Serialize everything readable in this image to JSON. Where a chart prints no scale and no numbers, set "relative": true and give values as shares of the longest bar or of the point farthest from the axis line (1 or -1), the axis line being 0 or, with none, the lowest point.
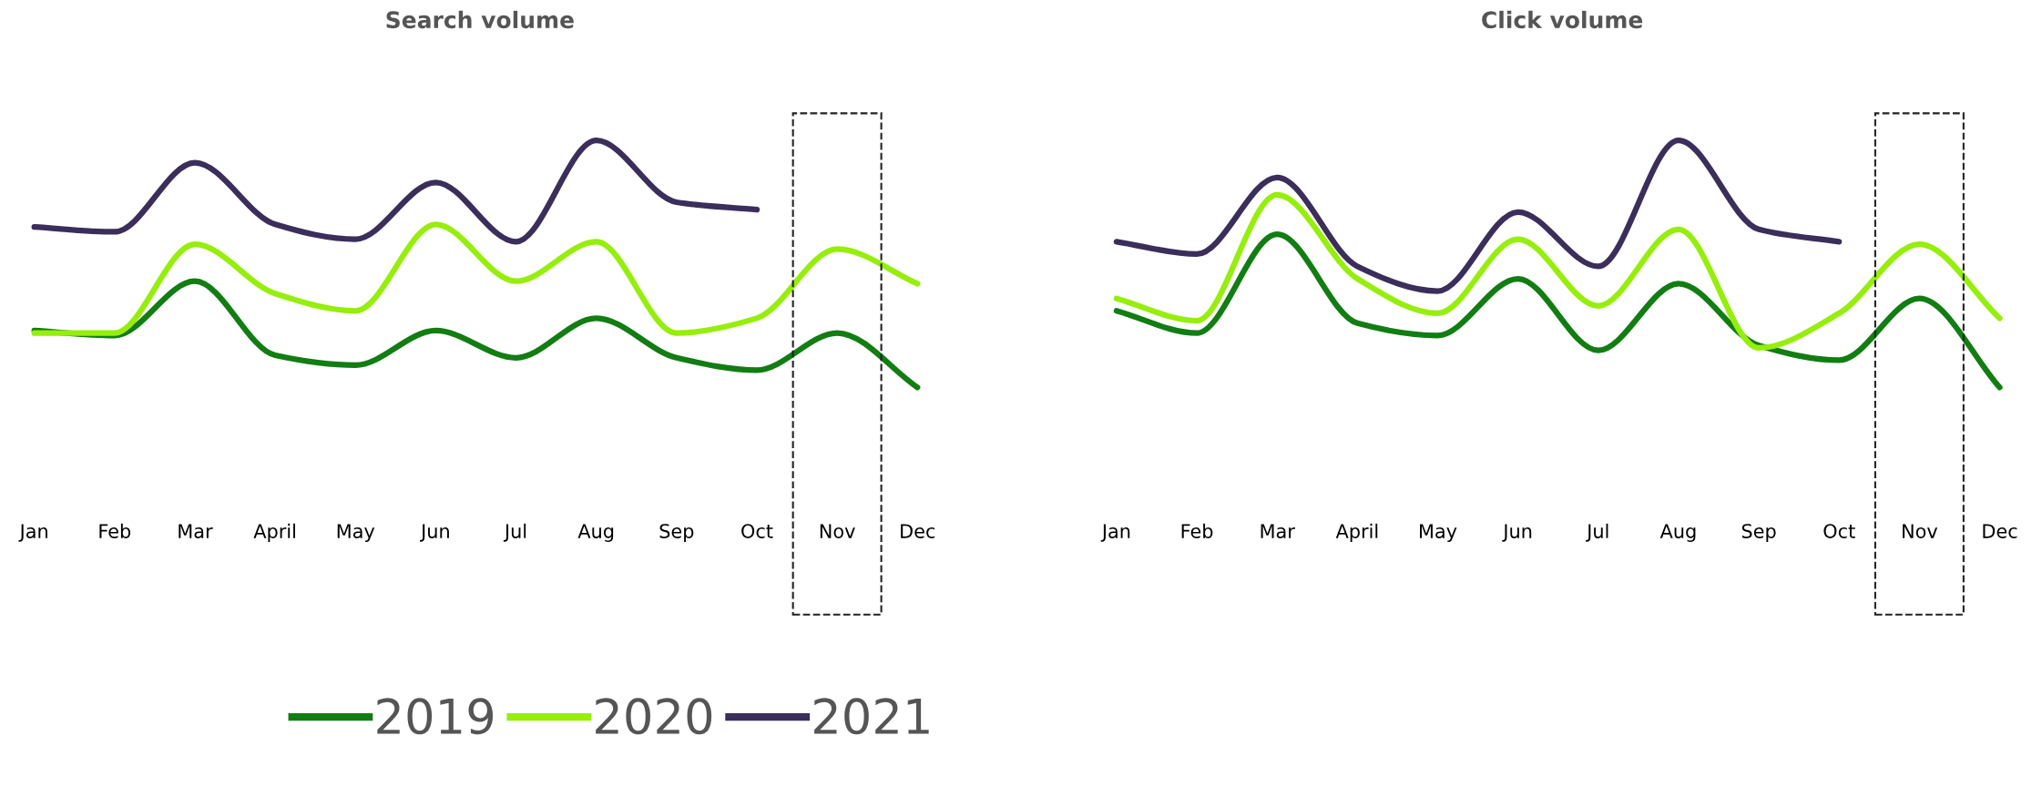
{
  "chart_data": [
    {
      "type": "line",
      "title": "Search volume",
      "relative": true,
      "categories": [
        "Jan",
        "Feb",
        "Mar",
        "April",
        "May",
        "Jun",
        "Jul",
        "Aug",
        "Sep",
        "Oct",
        "Nov",
        "Dec"
      ],
      "series": [
        {
          "name": "2019",
          "color": "#127d12",
          "values": [
            0.23,
            0.21,
            0.43,
            0.13,
            0.09,
            0.23,
            0.12,
            0.28,
            0.12,
            0.07,
            0.22,
            0
          ]
        },
        {
          "name": "2020",
          "color": "#96ee0c",
          "values": [
            0.22,
            0.22,
            0.58,
            0.38,
            0.31,
            0.66,
            0.43,
            0.59,
            0.22,
            0.28,
            0.56,
            0.42
          ]
        },
        {
          "name": "2021",
          "color": "#3b2e5a",
          "values": [
            0.65,
            0.63,
            0.91,
            0.66,
            0.6,
            0.83,
            0.59,
            1,
            0.75,
            0.72,
            null,
            null
          ]
        }
      ],
      "grid": false,
      "legend": "bottom",
      "line_style": "solid",
      "marker": "none"
    },
    {
      "type": "line",
      "title": "Click volume",
      "relative": true,
      "categories": [
        "Jan",
        "Feb",
        "Mar",
        "April",
        "May",
        "Jun",
        "Jul",
        "Aug",
        "Sep",
        "Oct",
        "Nov",
        "Dec"
      ],
      "series": [
        {
          "name": "2019",
          "color": "#127d12",
          "values": [
            0.31,
            0.22,
            0.62,
            0.26,
            0.21,
            0.44,
            0.15,
            0.42,
            0.17,
            0.11,
            0.36,
            0
          ]
        },
        {
          "name": "2020",
          "color": "#96ee0c",
          "values": [
            0.36,
            0.27,
            0.78,
            0.44,
            0.3,
            0.6,
            0.33,
            0.64,
            0.16,
            0.3,
            0.58,
            0.28
          ]
        },
        {
          "name": "2021",
          "color": "#3b2e5a",
          "values": [
            0.59,
            0.54,
            0.85,
            0.49,
            0.39,
            0.71,
            0.49,
            1,
            0.64,
            0.59,
            null,
            null
          ]
        }
      ],
      "grid": false,
      "legend": "bottom",
      "line_style": "solid",
      "marker": "none"
    }
  ]
}
